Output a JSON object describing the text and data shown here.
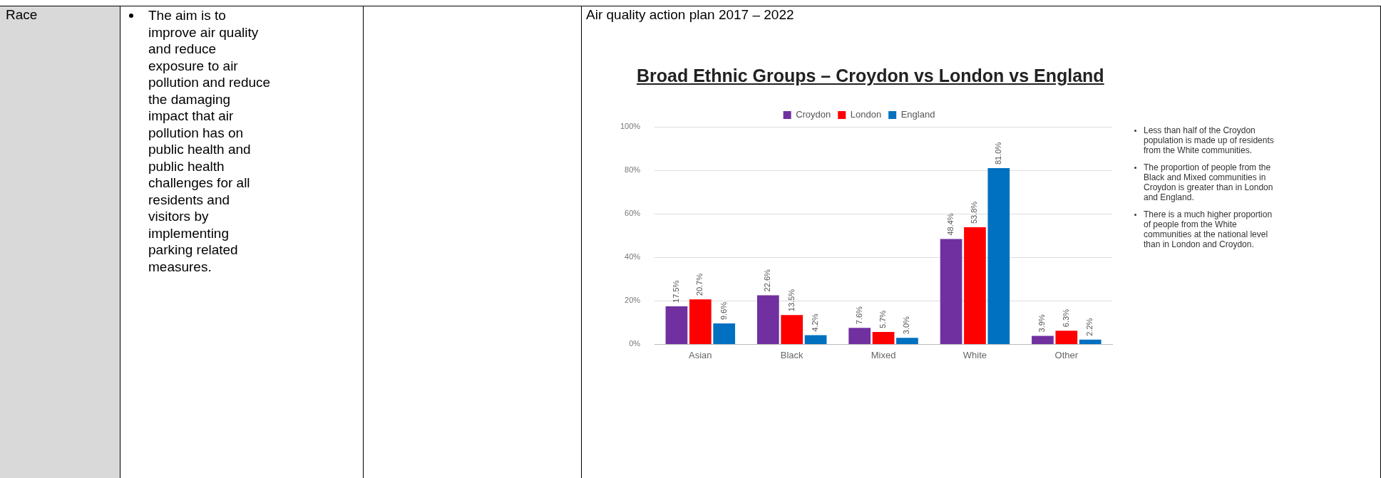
{
  "chart_data": {
    "type": "bar",
    "title": "Broad Ethnic Groups – Croydon vs London vs England",
    "categories": [
      "Asian",
      "Black",
      "Mixed",
      "White",
      "Other"
    ],
    "series": [
      {
        "name": "Croydon",
        "color": "#7030a0",
        "values": [
          17.5,
          22.6,
          7.6,
          48.4,
          3.9
        ],
        "value_labels": [
          "17.5%",
          "22.6%",
          "7.6%",
          "48.4%",
          "3.9%"
        ]
      },
      {
        "name": "London",
        "color": "#ff0000",
        "values": [
          20.7,
          13.5,
          5.7,
          53.8,
          6.3
        ],
        "value_labels": [
          "20.7%",
          "13.5%",
          "5.7%",
          "53.8%",
          "6.3%"
        ]
      },
      {
        "name": "England",
        "color": "#0070c0",
        "values": [
          9.6,
          4.2,
          3.0,
          81.0,
          2.2
        ],
        "value_labels": [
          "9.6%",
          "4.2%",
          "3.0%",
          "81.0%",
          "2.2%"
        ]
      }
    ],
    "ylim": [
      0,
      100
    ],
    "yticks": [
      {
        "value": 0,
        "label": "0%"
      },
      {
        "value": 20,
        "label": "20%"
      },
      {
        "value": 40,
        "label": "40%"
      },
      {
        "value": 60,
        "label": "60%"
      },
      {
        "value": 80,
        "label": "80%"
      },
      {
        "value": 100,
        "label": "100%"
      }
    ],
    "grid": "y",
    "legend": "top",
    "annotations": [
      "Race",
      "The aim is to improve air quality and reduce exposure to air pollution and reduce the damaging impact that air pollution has on public health and public health challenges for all residents and visitors by implementing parking related measures.",
      "Air quality action plan 2017 – 2022",
      "Less than half of the Croydon population is made up of residents  from the White communities.",
      "The proportion of people from the Black and Mixed communities in Croydon is greater than in London and England.",
      "There is a much higher proportion of people from the White communities at the national level than in London and Croydon."
    ]
  }
}
